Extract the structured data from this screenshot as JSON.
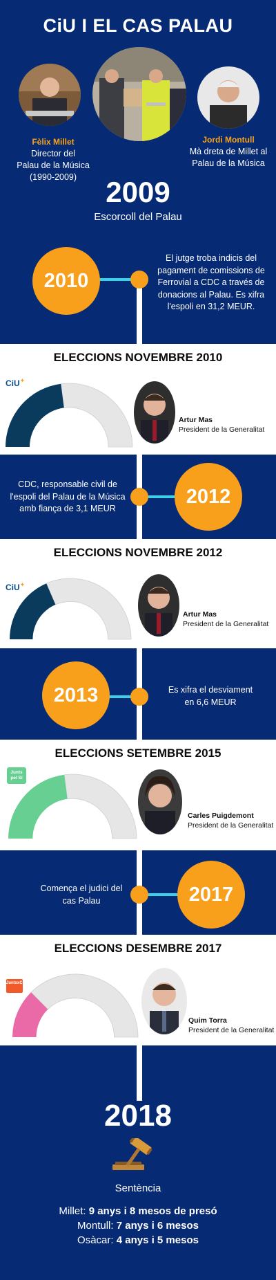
{
  "title": "CiU I EL CAS PALAU",
  "people": [
    {
      "name": "Fèlix Millet",
      "role_lines": [
        "Director del",
        "Palau de la Música",
        "(1990-2009)"
      ]
    },
    {
      "name": "Jordi Montull",
      "role_lines": [
        "Mà dreta de Millet al",
        "Palau de la Música"
      ]
    }
  ],
  "milestone_2009": {
    "year": "2009",
    "label": "Escorcoll del Palau"
  },
  "timeline": [
    {
      "year": "2010",
      "text_lines": [
        "El jutge troba indicis del",
        "pagament de comissions de",
        "Ferrovial a CDC a través de",
        "donacions al Palau. Es xifra",
        "l'espoli en 31,2 MEUR."
      ]
    },
    {
      "year": "2012",
      "text_lines": [
        "CDC, responsable civil de",
        "l'espoli del Palau de la Música",
        "amb fiança de 3,1 MEUR"
      ]
    },
    {
      "year": "2013",
      "text_lines": [
        "Es xifra el desviament",
        "en 6,6 MEUR"
      ]
    },
    {
      "year": "2017",
      "text_lines": [
        "Comença el judici del",
        "cas Palau"
      ]
    }
  ],
  "elections": [
    {
      "title": "ELECCIONS NOVEMBRE 2010",
      "logo": "CiU",
      "seats": 62,
      "total": 135,
      "color": "#0a3a5c",
      "president": "Artur Mas",
      "role": "President de la Generalitat"
    },
    {
      "title": "ELECCIONS NOVEMBRE 2012",
      "logo": "CiU",
      "seats": 50,
      "total": 135,
      "color": "#0a3a5c",
      "president": "Artur Mas",
      "role": "President de la Generalitat"
    },
    {
      "title": "ELECCIONS SETEMBRE 2015",
      "logo": "Junts pel Sí",
      "seats": 62,
      "total": 135,
      "color": "#66cf91",
      "president": "Carles Puigdemont",
      "role": "President de la Generalitat"
    },
    {
      "title": "ELECCIONS DESEMBRE 2017",
      "logo": "JuntsxCat",
      "seats": 34,
      "total": 135,
      "color": "#e96aa6",
      "president": "Quim Torra",
      "role": "President de la Generalitat"
    }
  ],
  "final": {
    "year": "2018",
    "label": "Sentència",
    "sentences": [
      {
        "who": "Millet:",
        "penalty": "9 anys i 8 mesos de presó"
      },
      {
        "who": "Montull:",
        "penalty": "7 anys i 6 mesos"
      },
      {
        "who": "Osàcar:",
        "penalty": "4 anys i 5 mesos"
      }
    ]
  },
  "colors": {
    "navy": "#062a73",
    "orange": "#f8a01c",
    "cyan": "#3ed0e6",
    "gray": "#e6e6e6"
  }
}
